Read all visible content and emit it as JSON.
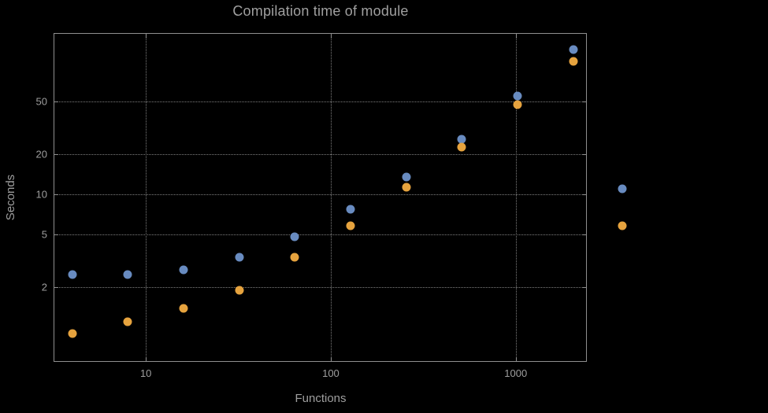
{
  "page": {
    "background": "#000000"
  },
  "chart_data": {
    "type": "scatter",
    "title": "Compilation time of module",
    "xlabel": "Functions",
    "ylabel": "Seconds",
    "x_scale": "log",
    "y_scale": "log",
    "x_range": [
      3.2,
      2400
    ],
    "y_range": [
      0.56,
      160
    ],
    "x_ticks": [
      10,
      100,
      1000
    ],
    "y_ticks": [
      2,
      5,
      10,
      20,
      50
    ],
    "grid": "dotted",
    "x": [
      4,
      8,
      16,
      32,
      64,
      128,
      256,
      512,
      1024,
      2048
    ],
    "series": [
      {
        "name": "series-1-blue",
        "color": "#688BC0",
        "values": [
          2.5,
          2.5,
          2.7,
          3.35,
          4.8,
          7.7,
          13.5,
          26,
          55,
          122
        ]
      },
      {
        "name": "series-2-orange",
        "color": "#E6A33E",
        "values": [
          0.9,
          1.1,
          1.4,
          1.9,
          3.35,
          5.8,
          11.3,
          22.5,
          47,
          99
        ]
      }
    ],
    "legend": {
      "position": "right",
      "labels_visible": false
    },
    "colors": {
      "background": "#000000",
      "grid": "#7e7e7e",
      "frame": "#8f8f8f",
      "text": "#9e9e9e"
    }
  }
}
